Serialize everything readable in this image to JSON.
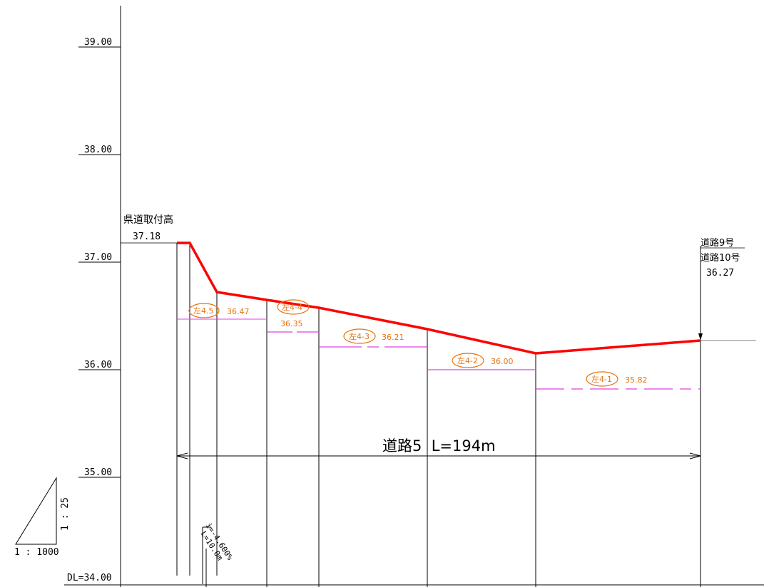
{
  "axis": {
    "ticks": [
      "39.00",
      "38.00",
      "37.00",
      "36.00",
      "35.00",
      "DL=34.00"
    ]
  },
  "start_point": {
    "label": "県道取付高",
    "value": "37.18"
  },
  "end_point": {
    "label1": "道路9号",
    "label2": "道路10号",
    "value": "36.27"
  },
  "road": {
    "title": "道路5  L=194m"
  },
  "markers": [
    {
      "tag": "左4.5",
      "value": "36.47"
    },
    {
      "tag": "左4-4",
      "value": "36.35"
    },
    {
      "tag": "左4-3",
      "value": "36.21"
    },
    {
      "tag": "左4-2",
      "value": "36.00"
    },
    {
      "tag": "左4-1",
      "value": "35.82"
    }
  ],
  "slope": {
    "grade": "i=-4.600%",
    "length": "L=10.0m"
  },
  "scale": {
    "vertical": "1 : 25",
    "horizontal": "1 : 1000"
  },
  "colors": {
    "profile": "#ff0000",
    "level_lines": "#e040e0",
    "markers": "#e6730f"
  }
}
